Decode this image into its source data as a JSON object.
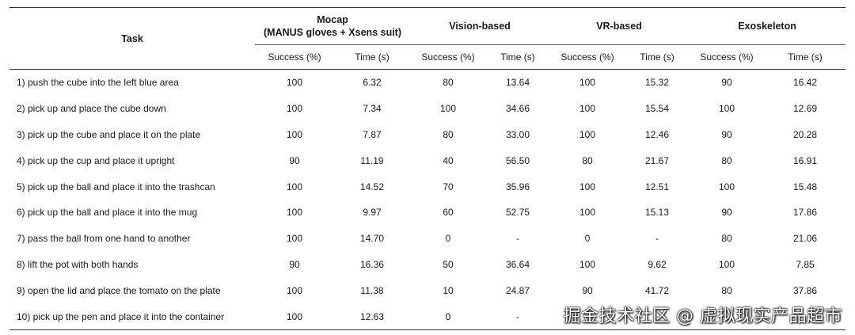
{
  "table": {
    "task_header": "Task",
    "groups": [
      {
        "line1": "Mocap",
        "line2": "(MANUS gloves + Xsens suit)"
      },
      {
        "line1": "Vision-based",
        "line2": ""
      },
      {
        "line1": "VR-based",
        "line2": ""
      },
      {
        "line1": "Exoskeleton",
        "line2": ""
      }
    ],
    "subheaders": [
      "Success (%)",
      "Time (s)",
      "Success (%)",
      "Time (s)",
      "Success (%)",
      "Time (s)",
      "Success (%)",
      "Time (s)"
    ],
    "rows": [
      {
        "task": "1) push the cube into the left blue area",
        "cells": [
          "100",
          "6.32",
          "80",
          "13.64",
          "100",
          "15.32",
          "90",
          "16.42"
        ]
      },
      {
        "task": "2) pick up and place the cube down",
        "cells": [
          "100",
          "7.34",
          "100",
          "34.66",
          "100",
          "15.54",
          "100",
          "12.69"
        ]
      },
      {
        "task": "3) pick up the cube and place it on the plate",
        "cells": [
          "100",
          "7.87",
          "80",
          "33.00",
          "100",
          "12.46",
          "90",
          "20.28"
        ]
      },
      {
        "task": "4) pick up the cup and place it upright",
        "cells": [
          "90",
          "11.19",
          "40",
          "56.50",
          "80",
          "21.67",
          "80",
          "16.91"
        ]
      },
      {
        "task": "5) pick up the ball and place it into the trashcan",
        "cells": [
          "100",
          "14.52",
          "70",
          "35.96",
          "100",
          "12.51",
          "100",
          "15.48"
        ]
      },
      {
        "task": "6) pick up the ball and place it into the mug",
        "cells": [
          "100",
          "9.97",
          "60",
          "52.75",
          "100",
          "15.13",
          "90",
          "17.86"
        ]
      },
      {
        "task": "7) pass the ball from one hand to another",
        "cells": [
          "100",
          "14.70",
          "0",
          "-",
          "0",
          "-",
          "80",
          "21.06"
        ]
      },
      {
        "task": "8) lift the pot with both hands",
        "cells": [
          "90",
          "16.36",
          "50",
          "36.64",
          "100",
          "9.62",
          "100",
          "7.85"
        ]
      },
      {
        "task": "9) open the lid and place the tomato on the plate",
        "cells": [
          "100",
          "11.38",
          "10",
          "24.87",
          "90",
          "41.72",
          "80",
          "37.86"
        ]
      },
      {
        "task": "10) pick up the pen and place it into the container",
        "cells": [
          "100",
          "12.63",
          "0",
          "-",
          "",
          "",
          "",
          ""
        ]
      }
    ]
  },
  "watermark": "掘金技术社区 @ 虚拟现实产品超市"
}
